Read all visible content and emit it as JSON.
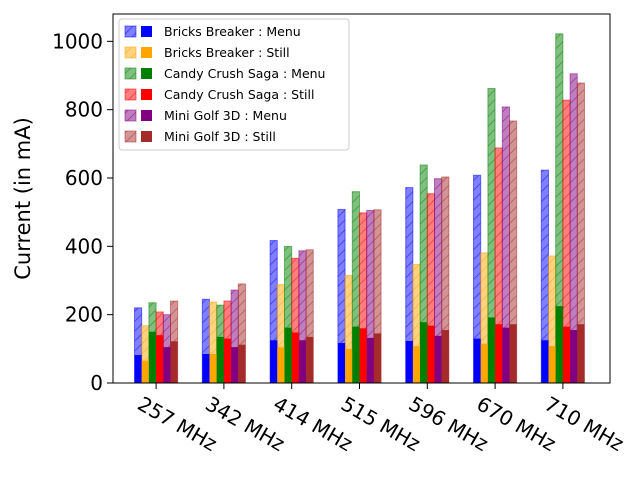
{
  "chart_data": {
    "type": "bar",
    "title": "",
    "xlabel": "",
    "ylabel": "Current (in mA)",
    "ylim": [
      0,
      1080
    ],
    "yticks": [
      0,
      200,
      400,
      600,
      800,
      1000
    ],
    "categories": [
      "257 MHz",
      "342 MHz",
      "414 MHz",
      "515 MHz",
      "596 MHz",
      "670 MHz",
      "710 MHz"
    ],
    "grid": false,
    "legend_position": "upper-left",
    "games": [
      {
        "name": "Bricks Breaker",
        "color": "#0000ff"
      },
      {
        "name": "Candy Crush Saga",
        "color": "#008000"
      },
      {
        "name": "Mini Golf 3D",
        "color": "#800080"
      }
    ],
    "series": [
      {
        "name": "Bricks Breaker : Menu",
        "kind": "hatched",
        "color": "#0000ff",
        "values": [
          220,
          245,
          417,
          508,
          572,
          608,
          623
        ]
      },
      {
        "name": "Bricks Breaker : Still",
        "kind": "hatched",
        "color": "#ffa500",
        "values": [
          168,
          237,
          288,
          315,
          347,
          381,
          372
        ]
      },
      {
        "name": "Candy Crush Saga : Menu",
        "kind": "hatched",
        "color": "#008000",
        "values": [
          235,
          228,
          400,
          560,
          638,
          862,
          1022
        ]
      },
      {
        "name": "Candy Crush Saga : Still",
        "kind": "hatched",
        "color": "#ff0000",
        "values": [
          208,
          240,
          365,
          498,
          554,
          688,
          828
        ]
      },
      {
        "name": "Mini Golf 3D : Menu",
        "kind": "hatched",
        "color": "#800080",
        "values": [
          200,
          272,
          387,
          505,
          598,
          808,
          905
        ]
      },
      {
        "name": "Mini Golf 3D : Still",
        "kind": "hatched",
        "color": "#a52a2a",
        "values": [
          240,
          290,
          390,
          507,
          603,
          767,
          878
        ]
      },
      {
        "name": "Bricks Breaker : Menu",
        "kind": "solid",
        "color": "#0000ff",
        "values": [
          82,
          85,
          125,
          117,
          123,
          130,
          125
        ]
      },
      {
        "name": "Bricks Breaker : Still",
        "kind": "solid",
        "color": "#ffa500",
        "values": [
          65,
          85,
          105,
          100,
          108,
          115,
          108
        ]
      },
      {
        "name": "Candy Crush Saga : Menu",
        "kind": "solid",
        "color": "#008000",
        "values": [
          150,
          135,
          162,
          165,
          178,
          192,
          225
        ]
      },
      {
        "name": "Candy Crush Saga : Still",
        "kind": "solid",
        "color": "#ff0000",
        "values": [
          140,
          130,
          148,
          160,
          168,
          172,
          165
        ]
      },
      {
        "name": "Mini Golf 3D : Menu",
        "kind": "solid",
        "color": "#800080",
        "values": [
          105,
          105,
          125,
          132,
          138,
          162,
          155
        ]
      },
      {
        "name": "Mini Golf 3D : Still",
        "kind": "solid",
        "color": "#a52a2a",
        "values": [
          122,
          112,
          135,
          145,
          155,
          172,
          172
        ]
      }
    ]
  }
}
